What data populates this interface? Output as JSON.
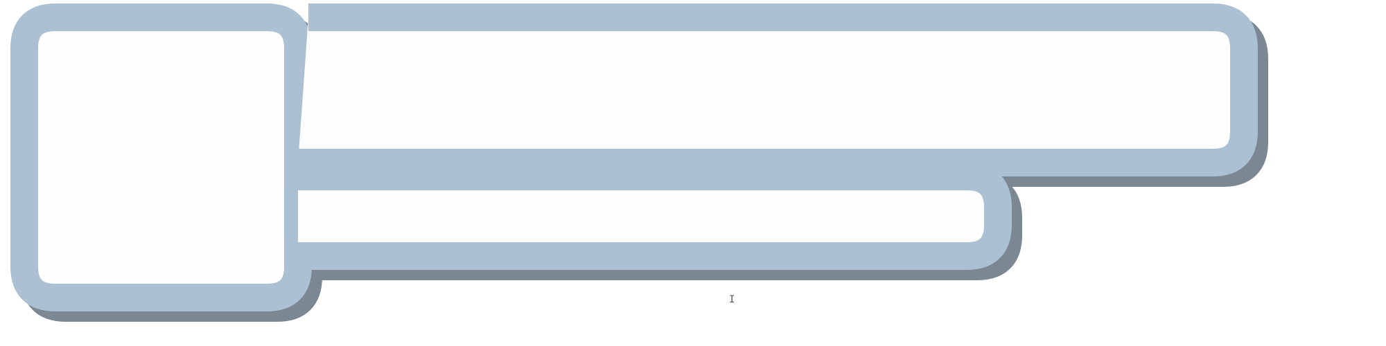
{
  "colors": {
    "background": "#ffffff",
    "box_fill": "#fefefe",
    "box_stroke": "#acc0d3",
    "shadow": "#7b8793"
  },
  "boxes": [
    {
      "role": "left-tall-box"
    },
    {
      "role": "top-wide-box"
    },
    {
      "role": "bottom-middle-box"
    }
  ],
  "cursor": {
    "glyph": "I",
    "color": "#555555"
  }
}
